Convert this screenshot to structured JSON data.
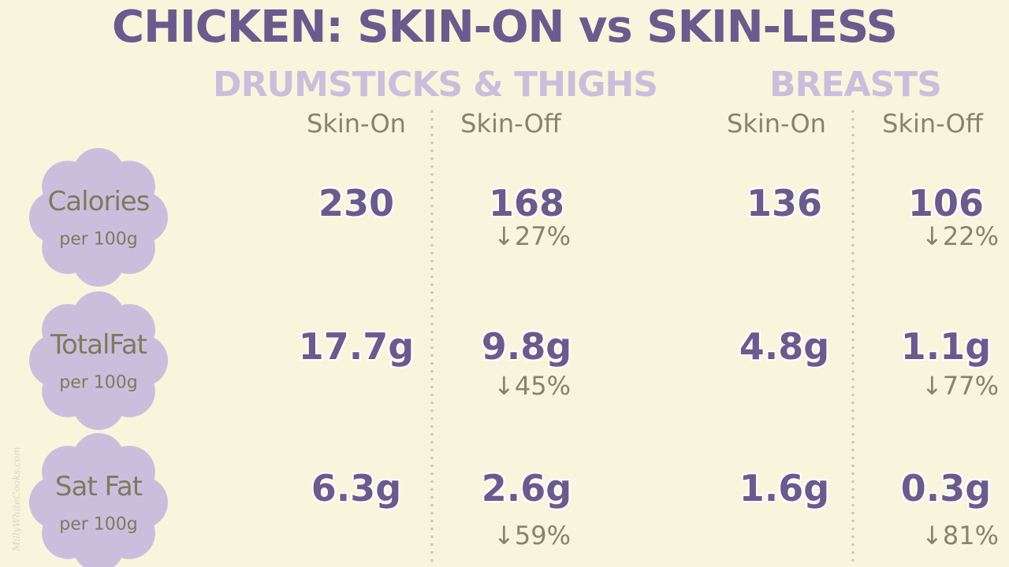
{
  "title": "CHICKEN: SKIN-ON vs SKIN-LESS",
  "groups": [
    {
      "label": "DRUMSTICKS & THIGHS",
      "columns": [
        "Skin-On",
        "Skin-Off"
      ]
    },
    {
      "label": "BREASTS",
      "columns": [
        "Skin-On",
        "Skin-Off"
      ]
    }
  ],
  "rows": [
    {
      "label": "Calories",
      "unit": "per 100g",
      "cells": [
        {
          "value": "230"
        },
        {
          "value": "168",
          "change": "↓27%"
        },
        {
          "value": "136"
        },
        {
          "value": "106",
          "change": "↓22%"
        }
      ]
    },
    {
      "label": "TotalFat",
      "unit": "per 100g",
      "cells": [
        {
          "value": "17.7g"
        },
        {
          "value": "9.8g",
          "change": "↓45%"
        },
        {
          "value": "4.8g"
        },
        {
          "value": "1.1g",
          "change": "↓77%"
        }
      ]
    },
    {
      "label": "Sat Fat",
      "unit": "per 100g",
      "cells": [
        {
          "value": "6.3g"
        },
        {
          "value": "2.6g",
          "change": "↓59%"
        },
        {
          "value": "1.6g"
        },
        {
          "value": "0.3g",
          "change": "↓81%"
        }
      ]
    }
  ],
  "watermark": "MillyWhiteCooks.com"
}
